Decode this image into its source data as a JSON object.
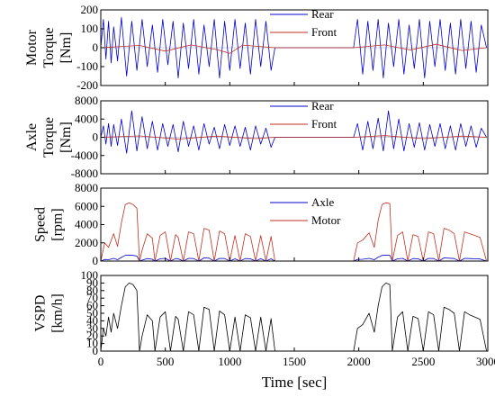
{
  "chart_data": [
    {
      "type": "line",
      "id": "motor",
      "ylabel": [
        "Motor",
        "Torque",
        "[Nm]"
      ],
      "ylim": [
        -200,
        200
      ],
      "yticks": [
        -200,
        -100,
        0,
        100,
        200
      ],
      "xlim": [
        0,
        3000
      ],
      "legend_position": "upper-right",
      "zero_line": true,
      "series": [
        {
          "name": "Rear",
          "color": "#0000cc",
          "x": [
            0,
            20,
            40,
            60,
            80,
            100,
            130,
            160,
            200,
            240,
            280,
            320,
            360,
            400,
            440,
            480,
            520,
            560,
            600,
            640,
            680,
            720,
            760,
            800,
            840,
            880,
            920,
            960,
            1000,
            1040,
            1080,
            1120,
            1160,
            1200,
            1240,
            1280,
            1320,
            1350,
            1960,
            1990,
            2030,
            2070,
            2110,
            2150,
            2190,
            2230,
            2270,
            2310,
            2350,
            2390,
            2430,
            2470,
            2510,
            2550,
            2590,
            2630,
            2670,
            2710,
            2750,
            2790,
            2830,
            2870,
            2910,
            2950,
            2990
          ],
          "y": [
            0,
            150,
            -60,
            140,
            -80,
            110,
            -70,
            160,
            -150,
            140,
            -120,
            150,
            -100,
            120,
            -130,
            150,
            -90,
            140,
            -160,
            130,
            -110,
            150,
            -140,
            120,
            -100,
            150,
            -160,
            140,
            -120,
            150,
            -110,
            130,
            -140,
            150,
            -100,
            140,
            -120,
            0,
            0,
            150,
            -140,
            140,
            -120,
            150,
            -160,
            130,
            -100,
            150,
            -140,
            120,
            -110,
            150,
            -160,
            140,
            -100,
            150,
            -120,
            130,
            -140,
            150,
            -110,
            140,
            -130,
            120,
            0
          ]
        },
        {
          "name": "Front",
          "color": "#c03020",
          "x": [
            0,
            300,
            500,
            700,
            900,
            1000,
            1100,
            1350,
            1960,
            2200,
            2400,
            2600,
            2800,
            2990
          ],
          "y": [
            0,
            12,
            -18,
            15,
            -10,
            -30,
            14,
            0,
            0,
            15,
            -12,
            18,
            -15,
            0
          ]
        }
      ]
    },
    {
      "type": "line",
      "id": "axle",
      "ylabel": [
        "Axle",
        "Torque",
        "[Nm]"
      ],
      "ylim": [
        -8000,
        8000
      ],
      "yticks": [
        -8000,
        -4000,
        0,
        4000,
        8000
      ],
      "xlim": [
        0,
        3000
      ],
      "legend_position": "upper-right",
      "zero_line": true,
      "series": [
        {
          "name": "Rear",
          "color": "#0000cc",
          "x": [
            0,
            20,
            40,
            60,
            80,
            100,
            130,
            160,
            200,
            240,
            280,
            320,
            360,
            400,
            440,
            480,
            520,
            560,
            600,
            640,
            680,
            720,
            760,
            800,
            840,
            880,
            920,
            960,
            1000,
            1040,
            1080,
            1120,
            1160,
            1200,
            1240,
            1280,
            1320,
            1350,
            1960,
            1990,
            2030,
            2070,
            2110,
            2150,
            2190,
            2230,
            2270,
            2310,
            2350,
            2390,
            2430,
            2470,
            2510,
            2550,
            2590,
            2630,
            2670,
            2710,
            2750,
            2790,
            2830,
            2870,
            2910,
            2950,
            2990
          ],
          "y": [
            0,
            2500,
            -1500,
            3000,
            -2000,
            2800,
            -1800,
            4000,
            -3500,
            5800,
            -3000,
            4500,
            -2500,
            3500,
            -2800,
            3000,
            -2000,
            2800,
            -3200,
            3500,
            -2000,
            2500,
            -2800,
            3000,
            -1500,
            2200,
            -2500,
            2800,
            -1800,
            2500,
            -2000,
            2200,
            -2800,
            2500,
            -1500,
            2000,
            -2200,
            0,
            0,
            3000,
            -2800,
            3500,
            -2500,
            4200,
            -3000,
            5800,
            -2500,
            4000,
            -3000,
            3000,
            -2200,
            3200,
            -2800,
            2800,
            -2000,
            3000,
            -2500,
            2500,
            -2800,
            3000,
            -2000,
            2500,
            -2200,
            2000,
            0
          ]
        },
        {
          "name": "Front",
          "color": "#c03020",
          "x": [
            0,
            300,
            600,
            900,
            1200,
            1350,
            1960,
            2200,
            2500,
            2800,
            2990
          ],
          "y": [
            0,
            300,
            -400,
            250,
            -300,
            0,
            0,
            350,
            -300,
            250,
            0
          ]
        }
      ]
    },
    {
      "type": "line",
      "id": "speed",
      "ylabel": [
        "Speed",
        "[rpm]"
      ],
      "ylim": [
        0,
        8000
      ],
      "yticks": [
        0,
        2000,
        4000,
        6000,
        8000
      ],
      "xlim": [
        0,
        3000
      ],
      "legend_position": "upper-right",
      "series": [
        {
          "name": "Axle",
          "color": "#0000cc",
          "x": [
            0,
            30,
            60,
            100,
            130,
            160,
            190,
            220,
            250,
            280,
            300,
            320,
            360,
            400,
            420,
            460,
            500,
            540,
            580,
            600,
            640,
            680,
            720,
            760,
            800,
            840,
            880,
            920,
            960,
            1000,
            1040,
            1080,
            1120,
            1160,
            1200,
            1240,
            1280,
            1320,
            1350,
            1960,
            1990,
            2030,
            2080,
            2120,
            2150,
            2180,
            2210,
            2240,
            2260,
            2300,
            2340,
            2380,
            2420,
            2460,
            2500,
            2540,
            2580,
            2620,
            2660,
            2700,
            2740,
            2780,
            2820,
            2860,
            2900,
            2940,
            2990
          ],
          "y": [
            0,
            180,
            150,
            300,
            150,
            400,
            620,
            650,
            620,
            550,
            0,
            100,
            280,
            200,
            0,
            250,
            300,
            0,
            280,
            250,
            0,
            300,
            280,
            0,
            350,
            320,
            0,
            300,
            280,
            0,
            250,
            0,
            280,
            250,
            0,
            260,
            0,
            250,
            0,
            0,
            180,
            200,
            300,
            150,
            420,
            620,
            650,
            640,
            0,
            250,
            300,
            0,
            280,
            250,
            0,
            300,
            280,
            0,
            350,
            320,
            280,
            0,
            300,
            280,
            250,
            230,
            0
          ]
        },
        {
          "name": "Motor",
          "color": "#c03020",
          "x": [
            0,
            30,
            60,
            100,
            130,
            160,
            190,
            220,
            250,
            280,
            300,
            320,
            360,
            400,
            420,
            460,
            500,
            540,
            580,
            600,
            640,
            680,
            720,
            760,
            800,
            840,
            880,
            920,
            960,
            1000,
            1040,
            1080,
            1120,
            1160,
            1200,
            1240,
            1280,
            1320,
            1350,
            1960,
            1990,
            2030,
            2080,
            2120,
            2150,
            2180,
            2210,
            2240,
            2260,
            2300,
            2340,
            2380,
            2420,
            2460,
            2500,
            2540,
            2580,
            2620,
            2660,
            2700,
            2740,
            2780,
            2820,
            2860,
            2900,
            2940,
            2990
          ],
          "y": [
            0,
            2000,
            1500,
            3000,
            1600,
            4200,
            6200,
            6400,
            6200,
            5800,
            0,
            1200,
            3000,
            2500,
            0,
            2800,
            3200,
            0,
            2900,
            2600,
            0,
            3200,
            3000,
            0,
            3600,
            3400,
            0,
            3300,
            3000,
            0,
            2800,
            0,
            3000,
            2700,
            0,
            2800,
            0,
            2700,
            0,
            0,
            2000,
            2300,
            3100,
            1500,
            4500,
            6200,
            6400,
            6300,
            0,
            2800,
            3200,
            0,
            2900,
            2700,
            0,
            3200,
            3000,
            0,
            3600,
            3400,
            3000,
            0,
            3200,
            3000,
            2800,
            2600,
            0
          ]
        }
      ]
    },
    {
      "type": "line",
      "id": "vspd",
      "ylabel": [
        "VSPD",
        "[km/h]"
      ],
      "ylim": [
        0,
        100
      ],
      "yticks": [
        0,
        10,
        20,
        30,
        40,
        50,
        60,
        70,
        80,
        90,
        100
      ],
      "xlim": [
        0,
        3000
      ],
      "xticks": [
        0,
        500,
        1000,
        1500,
        2000,
        2500,
        3000
      ],
      "xlabel": "Time [sec]",
      "series": [
        {
          "name": "",
          "color": "#000000",
          "x": [
            0,
            20,
            40,
            60,
            80,
            100,
            130,
            160,
            190,
            220,
            250,
            280,
            300,
            320,
            360,
            400,
            420,
            460,
            500,
            540,
            580,
            600,
            640,
            680,
            720,
            760,
            800,
            840,
            880,
            920,
            960,
            1000,
            1040,
            1080,
            1120,
            1160,
            1200,
            1240,
            1280,
            1320,
            1350,
            1960,
            1990,
            2030,
            2080,
            2120,
            2150,
            2180,
            2210,
            2240,
            2260,
            2300,
            2340,
            2380,
            2420,
            2460,
            2500,
            2540,
            2580,
            2620,
            2660,
            2700,
            2740,
            2780,
            2820,
            2860,
            2900,
            2940,
            2990
          ],
          "y": [
            0,
            30,
            20,
            45,
            25,
            50,
            30,
            60,
            85,
            90,
            88,
            80,
            0,
            20,
            48,
            40,
            0,
            45,
            52,
            0,
            46,
            42,
            0,
            52,
            48,
            0,
            58,
            55,
            0,
            53,
            48,
            0,
            45,
            0,
            48,
            44,
            0,
            45,
            0,
            43,
            0,
            0,
            30,
            35,
            50,
            25,
            60,
            85,
            90,
            88,
            0,
            45,
            52,
            0,
            46,
            43,
            0,
            52,
            48,
            0,
            58,
            55,
            50,
            0,
            52,
            48,
            45,
            42,
            0
          ]
        }
      ]
    }
  ]
}
